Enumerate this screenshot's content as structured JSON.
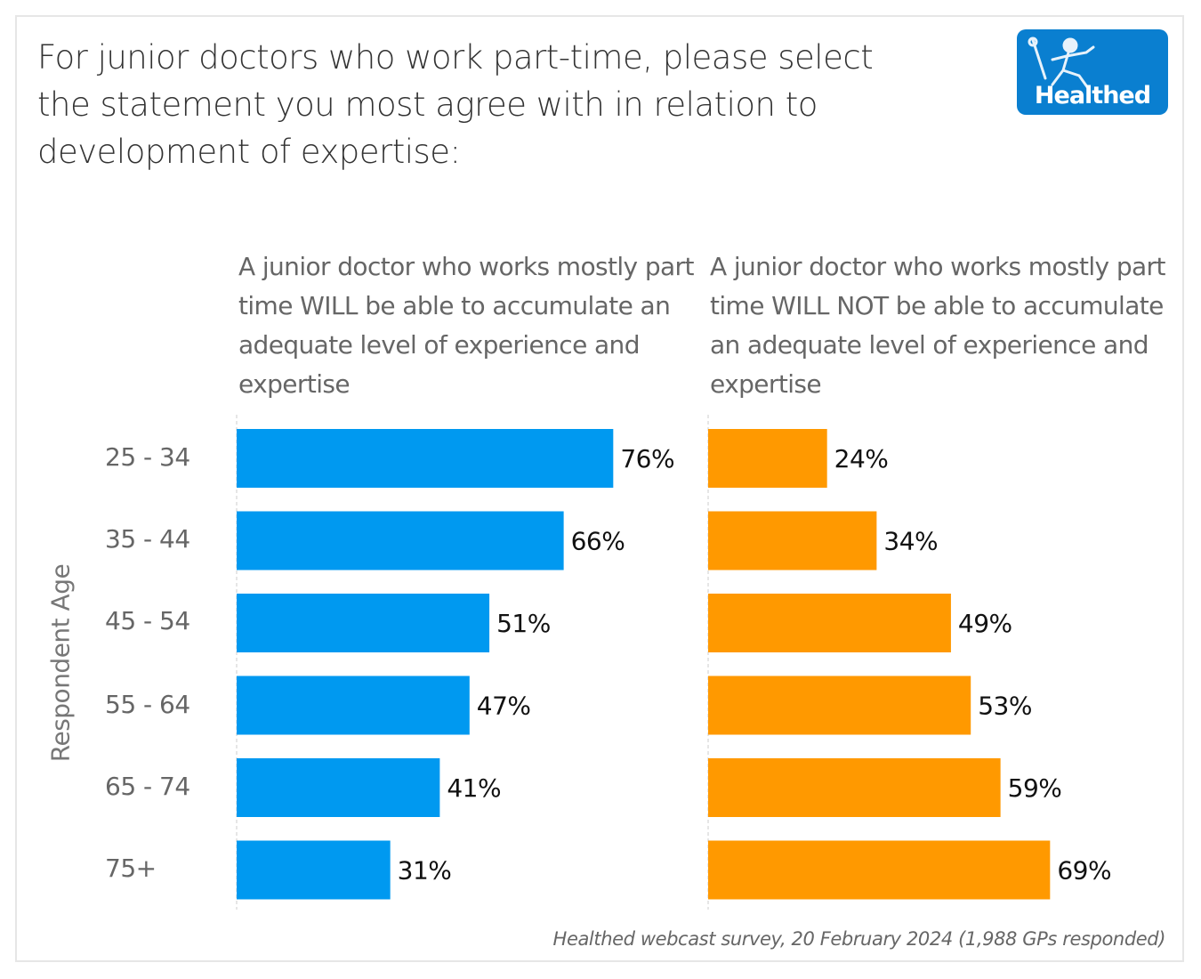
{
  "title": "For junior doctors who work part-time, please select the statement you most agree with in relation to development of expertise:",
  "logo": {
    "text": "Healthed",
    "icon": "hermes-runner-icon"
  },
  "footer": "Healthed webcast survey, 20 February 2024 (1,988 GPs responded)",
  "chart_data": {
    "type": "bar",
    "orientation": "horizontal",
    "title": "For junior doctors who work part-time, please select the statement you most agree with in relation to development of expertise:",
    "ylabel": "Respondent Age",
    "xlabel": "",
    "categories": [
      "25 - 34",
      "35 - 44",
      "45 - 54",
      "55 - 64",
      "65 - 74",
      "75+"
    ],
    "xlim": [
      0,
      100
    ],
    "grid": false,
    "series": [
      {
        "name": "A junior doctor who works mostly part time WILL be able to accumulate an adequate level of experience and expertise",
        "color": "#0099f0",
        "values": [
          76,
          66,
          51,
          47,
          41,
          31
        ],
        "labels": [
          "76%",
          "66%",
          "51%",
          "47%",
          "41%",
          "31%"
        ]
      },
      {
        "name": "A junior doctor who works mostly part time WILL NOT be able to accumulate an adequate level of experience and expertise",
        "color": "#ff9900",
        "values": [
          24,
          34,
          49,
          53,
          59,
          69
        ],
        "labels": [
          "24%",
          "34%",
          "49%",
          "53%",
          "59%",
          "69%"
        ]
      }
    ]
  }
}
